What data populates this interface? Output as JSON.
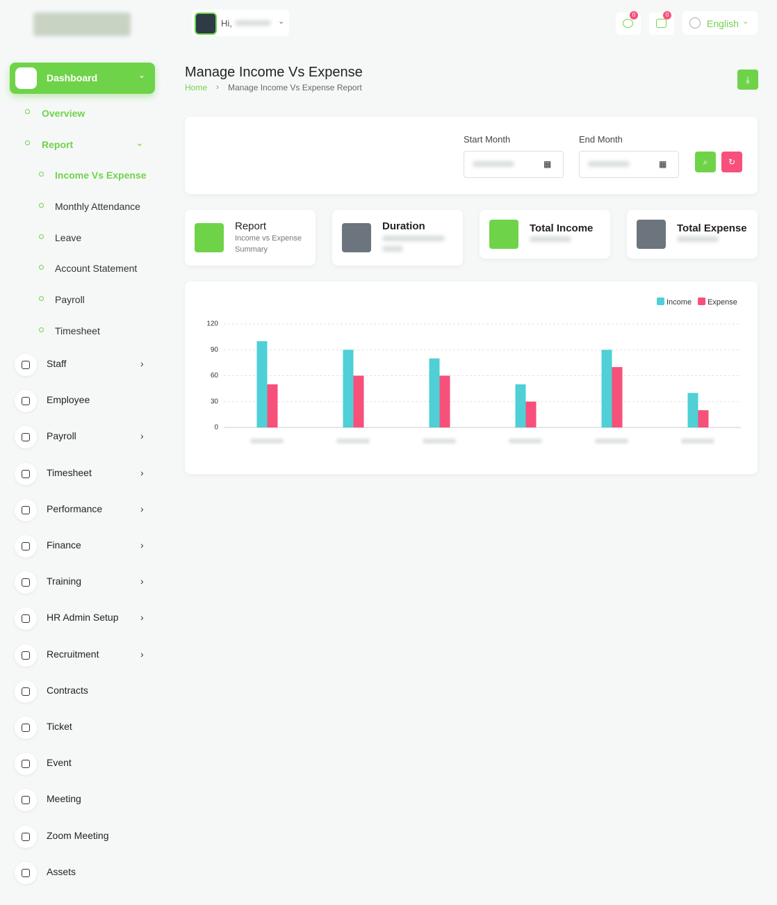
{
  "header": {
    "greeting": "Hi,",
    "language": "English",
    "badges": [
      0,
      0
    ]
  },
  "sidebar": {
    "active": "Dashboard",
    "sub": [
      {
        "label": "Overview",
        "has_submenu": false
      },
      {
        "label": "Report",
        "has_submenu": true
      }
    ],
    "report_items": [
      "Income Vs Expense",
      "Monthly Attendance",
      "Leave",
      "Account Statement",
      "Payroll",
      "Timesheet"
    ],
    "items": [
      {
        "label": "Staff",
        "has_submenu": true
      },
      {
        "label": "Employee",
        "has_submenu": false
      },
      {
        "label": "Payroll",
        "has_submenu": true
      },
      {
        "label": "Timesheet",
        "has_submenu": true
      },
      {
        "label": "Performance",
        "has_submenu": true
      },
      {
        "label": "Finance",
        "has_submenu": true
      },
      {
        "label": "Training",
        "has_submenu": true
      },
      {
        "label": "HR Admin Setup",
        "has_submenu": true
      },
      {
        "label": "Recruitment",
        "has_submenu": true
      },
      {
        "label": "Contracts",
        "has_submenu": false
      },
      {
        "label": "Ticket",
        "has_submenu": false
      },
      {
        "label": "Event",
        "has_submenu": false
      },
      {
        "label": "Meeting",
        "has_submenu": false
      },
      {
        "label": "Zoom Meeting",
        "has_submenu": false
      },
      {
        "label": "Assets",
        "has_submenu": false
      }
    ]
  },
  "page": {
    "title": "Manage Income Vs Expense",
    "breadcrumb": [
      "Home",
      "Manage Income Vs Expense Report"
    ]
  },
  "filter": {
    "start_label": "Start Month",
    "end_label": "End Month"
  },
  "cards": [
    {
      "title": "Report",
      "subtitle": "Income vs Expense Summary"
    },
    {
      "title": "Duration"
    },
    {
      "title": "Total Income"
    },
    {
      "title": "Total Expense"
    }
  ],
  "chart_data": {
    "type": "bar",
    "categories": [
      null,
      null,
      null,
      null,
      null,
      null
    ],
    "series": [
      {
        "name": "Income",
        "color": "#4fcfd6",
        "values": [
          100,
          90,
          80,
          50,
          90,
          40
        ]
      },
      {
        "name": "Expense",
        "color": "#f7507b",
        "values": [
          50,
          60,
          60,
          30,
          70,
          20
        ]
      }
    ],
    "ylim": [
      0,
      120
    ],
    "yticks": [
      0,
      30,
      60,
      90,
      120
    ],
    "grid": true,
    "legend": "top-right"
  }
}
